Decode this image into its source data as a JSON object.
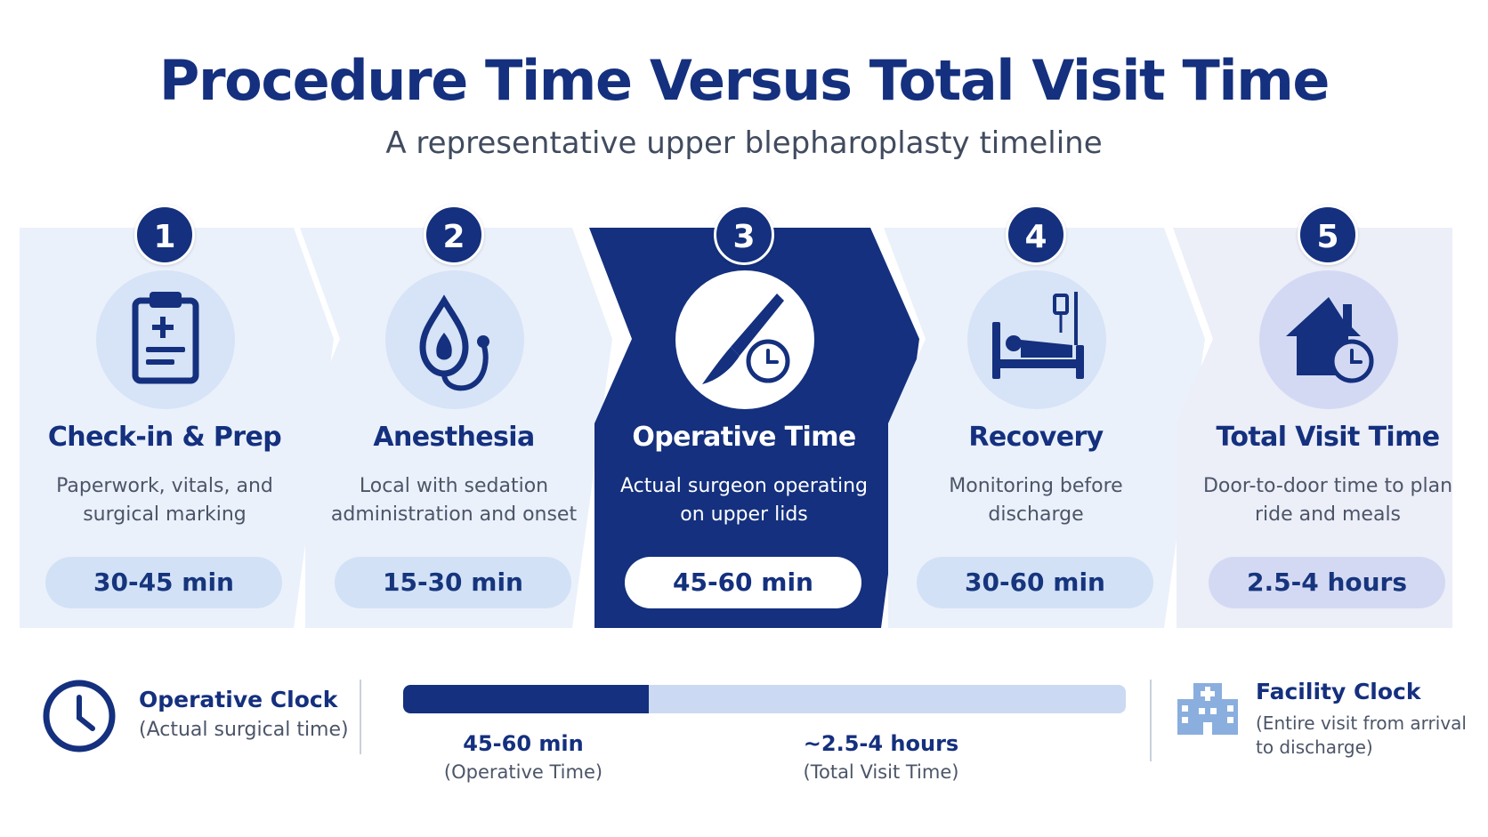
{
  "header": {
    "title": "Procedure Time Versus Total Visit Time",
    "subtitle": "A representative upper blepharoplasty timeline"
  },
  "steps": [
    {
      "number": "1",
      "title": "Check-in & Prep",
      "description": "Paperwork, vitals, and surgical marking",
      "duration": "30-45 min",
      "icon": "clipboard-icon",
      "active": false
    },
    {
      "number": "2",
      "title": "Anesthesia",
      "description": "Local with sedation administration and onset",
      "duration": "15-30 min",
      "icon": "anesthesia-mask-icon",
      "active": false
    },
    {
      "number": "3",
      "title": "Operative Time",
      "description": "Actual surgeon operating on upper lids",
      "duration": "45-60 min",
      "icon": "scalpel-clock-icon",
      "active": true
    },
    {
      "number": "4",
      "title": "Recovery",
      "description": "Monitoring before discharge",
      "duration": "30-60 min",
      "icon": "recovery-bed-icon",
      "active": false
    },
    {
      "number": "5",
      "title": "Total Visit Time",
      "description": "Door-to-door time to plan ride and meals",
      "duration": "2.5-4 hours",
      "icon": "home-clock-icon",
      "active": false
    }
  ],
  "comparison": {
    "operative_clock": {
      "title": "Operative Clock",
      "subtitle": "(Actual surgical time)",
      "icon": "clock-icon"
    },
    "bar": {
      "operative_fraction": 0.34,
      "operative_label": "45-60 min",
      "operative_sub": "(Operative Time)",
      "total_label": "~2.5-4 hours",
      "total_sub": "(Total Visit Time)"
    },
    "facility_clock": {
      "title": "Facility Clock",
      "subtitle": "(Entire visit from arrival to discharge)",
      "icon": "hospital-building-icon"
    }
  },
  "colors": {
    "primary": "#14307e",
    "panel": "#eaf1fb",
    "panel_last": "#eceef8",
    "icon_bg": "#d7e3f6",
    "bar_track": "#cbdaf2"
  }
}
